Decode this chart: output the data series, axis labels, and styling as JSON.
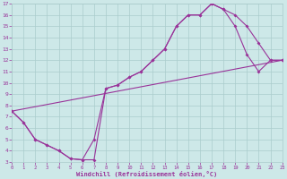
{
  "xlabel": "Windchill (Refroidissement éolien,°C)",
  "xlim": [
    0,
    23
  ],
  "ylim": [
    3,
    17
  ],
  "xtick_vals": [
    0,
    1,
    2,
    3,
    4,
    5,
    6,
    7,
    8,
    9,
    10,
    11,
    12,
    13,
    14,
    15,
    16,
    17,
    18,
    19,
    20,
    21,
    22,
    23
  ],
  "ytick_vals": [
    3,
    4,
    5,
    6,
    7,
    8,
    9,
    10,
    11,
    12,
    13,
    14,
    15,
    16,
    17
  ],
  "background_color": "#cde8e8",
  "grid_color": "#aacccc",
  "line_color": "#993399",
  "line1_x": [
    0,
    1,
    2,
    3,
    4,
    5,
    6,
    7,
    8,
    9,
    10,
    11,
    12,
    13,
    14,
    15,
    16,
    17,
    18,
    19,
    20,
    21,
    22,
    23
  ],
  "line1_y": [
    7.5,
    6.5,
    5.0,
    4.5,
    4.0,
    3.3,
    3.2,
    3.2,
    9.5,
    9.8,
    10.5,
    11.0,
    12.0,
    13.0,
    15.0,
    16.0,
    16.0,
    17.0,
    16.5,
    16.0,
    15.0,
    13.5,
    12.0,
    12.0
  ],
  "line2_x": [
    0,
    1,
    2,
    3,
    4,
    5,
    6,
    7,
    8,
    9,
    10,
    11,
    12,
    13,
    14,
    15,
    16,
    17,
    18,
    19,
    20,
    21,
    22,
    23
  ],
  "line2_y": [
    7.5,
    6.5,
    5.0,
    4.5,
    4.0,
    3.3,
    3.2,
    5.0,
    9.5,
    9.8,
    10.5,
    11.0,
    12.0,
    13.0,
    15.0,
    16.0,
    16.0,
    17.0,
    16.5,
    15.0,
    12.5,
    11.0,
    12.0,
    12.0
  ],
  "line3_x": [
    0,
    23
  ],
  "line3_y": [
    7.5,
    12.0
  ]
}
